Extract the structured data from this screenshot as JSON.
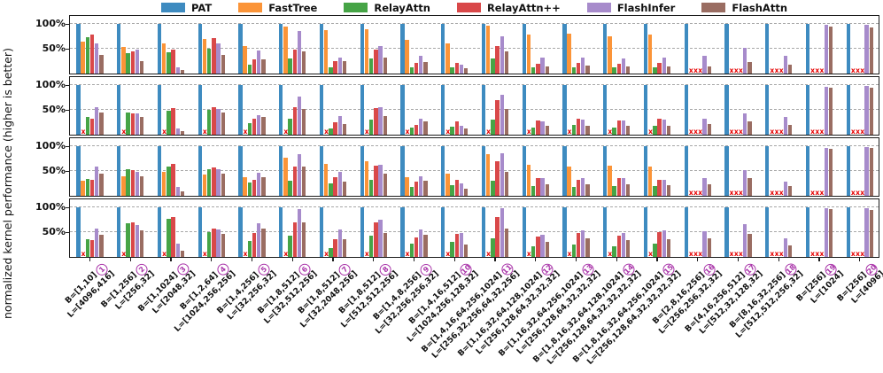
{
  "chart_data": {
    "type": "bar",
    "title": "",
    "ylabel": "normalized kernel performance (higher is better)",
    "ytick_labels": [
      "100%",
      "50%"
    ],
    "yticks_pct": [
      100,
      50
    ],
    "ylim": [
      0,
      114
    ],
    "grid": "dashed horizontal at 50% and 100%",
    "legend_position": "top-center",
    "series": [
      "PAT",
      "FastTree",
      "RelayAttn",
      "RelayAttn++",
      "FlashInfer",
      "FlashAttn"
    ],
    "colors": [
      "#3e8bc0",
      "#fb9438",
      "#46a446",
      "#d94849",
      "#a78bcb",
      "#9a6d62"
    ],
    "missing_marker": "x",
    "missing_color": "#e50000",
    "group_number_color": "#a934a9",
    "groups": [
      {
        "num": "1",
        "b": "B=[1,10]",
        "l": "L=[4096,416]"
      },
      {
        "num": "2",
        "b": "B=[1,256]",
        "l": "L=[256,32]"
      },
      {
        "num": "3",
        "b": "B=[1,1024]",
        "l": "L=[2048,32]"
      },
      {
        "num": "4",
        "b": "B=[1,2,64]",
        "l": "L=[1024,256,256]"
      },
      {
        "num": "5",
        "b": "B=[1,4,256]",
        "l": "L=[32,256,32]"
      },
      {
        "num": "6",
        "b": "B=[1,8,512]",
        "l": "L=[32,512,256]"
      },
      {
        "num": "7",
        "b": "B=[1,8,512]",
        "l": "L=[32,2048,256]"
      },
      {
        "num": "8",
        "b": "B=[1,8,512]",
        "l": "L=[512,512,256]"
      },
      {
        "num": "9",
        "b": "B=[1,4,8,256]",
        "l": "L=[32,256,256,32]"
      },
      {
        "num": "10",
        "b": "B=[1,4,16,512]",
        "l": "L=[1024,256,128,32]"
      },
      {
        "num": "11",
        "b": "B=[1,4,16,64,256,1024]",
        "l": "L=[256,32,256,64,32,256]"
      },
      {
        "num": "12",
        "b": "B=[1,16,32,64,128,1024]",
        "l": "L=[256,128,64,32,32,32]"
      },
      {
        "num": "13",
        "b": "B=[1,16,32,64,256,1024]",
        "l": "L=[256,128,64,32,32,32]"
      },
      {
        "num": "14",
        "b": "B=[1,8,16,32,64,128,1024]",
        "l": "L=[256,128,64,32,32,32,32]"
      },
      {
        "num": "15",
        "b": "B=[1,8,16,32,64,256,1024]",
        "l": "L=[256,128,64,32,32,32,32]"
      },
      {
        "num": "16",
        "b": "B=[2,8,16,256]",
        "l": "L=[256,256,32,32]"
      },
      {
        "num": "17",
        "b": "B=[4,16,256,512]",
        "l": "L=[512,32,128,32]"
      },
      {
        "num": "18",
        "b": "B=[8,16,32,256]",
        "l": "L=[512,512,256,32]"
      },
      {
        "num": "19",
        "b": "B=[256]",
        "l": "L=[1024]"
      },
      {
        "num": "20",
        "b": "B=[256]",
        "l": "L=[4096]"
      }
    ],
    "rows": [
      [
        [
          100,
          65,
          73,
          79,
          60,
          37
        ],
        [
          100,
          54,
          41,
          45,
          48,
          25
        ],
        [
          100,
          61,
          42,
          49,
          13,
          8
        ],
        [
          100,
          70,
          50,
          72,
          60,
          38
        ],
        [
          100,
          56,
          18,
          28,
          47,
          28
        ],
        [
          100,
          95,
          30,
          48,
          85,
          44
        ],
        [
          100,
          88,
          13,
          25,
          33,
          25
        ],
        [
          100,
          90,
          30,
          48,
          55,
          33
        ],
        [
          100,
          68,
          12,
          22,
          35,
          23
        ],
        [
          100,
          60,
          13,
          22,
          18,
          10
        ],
        [
          100,
          97,
          30,
          55,
          75,
          45
        ],
        [
          100,
          78,
          12,
          20,
          32,
          15
        ],
        [
          100,
          80,
          13,
          22,
          33,
          16
        ],
        [
          100,
          75,
          13,
          20,
          30,
          14
        ],
        [
          100,
          78,
          13,
          22,
          32,
          15
        ],
        [
          100,
          null,
          null,
          null,
          35,
          15
        ],
        [
          100,
          null,
          null,
          null,
          52,
          23
        ],
        [
          100,
          null,
          null,
          null,
          35,
          17
        ],
        [
          100,
          null,
          null,
          null,
          98,
          95
        ],
        [
          100,
          null,
          null,
          null,
          98,
          93
        ]
      ],
      [
        [
          100,
          null,
          35,
          33,
          55,
          44
        ],
        [
          100,
          null,
          44,
          43,
          42,
          35
        ],
        [
          100,
          null,
          49,
          53,
          13,
          7
        ],
        [
          100,
          null,
          50,
          55,
          52,
          45
        ],
        [
          100,
          null,
          24,
          33,
          40,
          36
        ],
        [
          100,
          null,
          33,
          56,
          77,
          51
        ],
        [
          100,
          null,
          12,
          25,
          38,
          22
        ],
        [
          100,
          null,
          30,
          53,
          56,
          38
        ],
        [
          100,
          null,
          15,
          20,
          33,
          26
        ],
        [
          100,
          null,
          16,
          26,
          18,
          12
        ],
        [
          100,
          null,
          30,
          70,
          80,
          52
        ],
        [
          100,
          null,
          15,
          28,
          27,
          17
        ],
        [
          100,
          null,
          20,
          32,
          31,
          18
        ],
        [
          100,
          null,
          14,
          28,
          28,
          17
        ],
        [
          100,
          null,
          18,
          32,
          31,
          18
        ],
        [
          100,
          null,
          null,
          null,
          33,
          22
        ],
        [
          100,
          null,
          null,
          null,
          43,
          26
        ],
        [
          100,
          null,
          null,
          null,
          35,
          20
        ],
        [
          100,
          null,
          null,
          null,
          97,
          95
        ],
        [
          100,
          null,
          null,
          null,
          98,
          95
        ]
      ],
      [
        [
          100,
          30,
          34,
          33,
          59,
          44
        ],
        [
          100,
          40,
          53,
          51,
          49,
          39
        ],
        [
          100,
          49,
          59,
          65,
          17,
          9
        ],
        [
          100,
          42,
          54,
          57,
          53,
          44
        ],
        [
          100,
          38,
          26,
          33,
          47,
          38
        ],
        [
          100,
          77,
          31,
          59,
          84,
          59
        ],
        [
          100,
          65,
          25,
          38,
          48,
          28
        ],
        [
          100,
          70,
          33,
          60,
          63,
          45
        ],
        [
          100,
          37,
          17,
          28,
          40,
          31
        ],
        [
          100,
          45,
          22,
          33,
          25,
          15
        ],
        [
          100,
          84,
          31,
          70,
          85,
          49
        ],
        [
          100,
          62,
          19,
          35,
          36,
          23
        ],
        [
          100,
          59,
          17,
          32,
          36,
          24
        ],
        [
          100,
          61,
          19,
          35,
          36,
          23
        ],
        [
          100,
          59,
          19,
          33,
          33,
          21
        ],
        [
          100,
          null,
          null,
          null,
          35,
          24
        ],
        [
          100,
          null,
          null,
          null,
          51,
          35
        ],
        [
          100,
          null,
          null,
          null,
          29,
          19
        ],
        [
          100,
          null,
          null,
          null,
          96,
          94
        ],
        [
          100,
          null,
          null,
          null,
          98,
          96
        ]
      ],
      [
        [
          100,
          null,
          35,
          34,
          58,
          45
        ],
        [
          100,
          null,
          68,
          70,
          65,
          54
        ],
        [
          100,
          null,
          77,
          80,
          27,
          13
        ],
        [
          100,
          null,
          50,
          57,
          55,
          46
        ],
        [
          100,
          null,
          33,
          48,
          68,
          58
        ],
        [
          100,
          null,
          43,
          70,
          97,
          70
        ],
        [
          100,
          null,
          17,
          36,
          56,
          36
        ],
        [
          100,
          null,
          42,
          70,
          75,
          48
        ],
        [
          100,
          null,
          27,
          40,
          55,
          44
        ],
        [
          100,
          null,
          30,
          47,
          48,
          25
        ],
        [
          100,
          null,
          37,
          80,
          98,
          57
        ],
        [
          100,
          null,
          22,
          41,
          45,
          31
        ],
        [
          100,
          null,
          25,
          48,
          54,
          37
        ],
        [
          100,
          null,
          22,
          42,
          48,
          34
        ],
        [
          100,
          null,
          26,
          50,
          53,
          35
        ],
        [
          100,
          null,
          null,
          null,
          51,
          37
        ],
        [
          100,
          null,
          null,
          null,
          66,
          47
        ],
        [
          100,
          null,
          null,
          null,
          38,
          23
        ],
        [
          100,
          null,
          null,
          null,
          98,
          96
        ],
        [
          100,
          null,
          null,
          null,
          98,
          95
        ]
      ]
    ]
  }
}
